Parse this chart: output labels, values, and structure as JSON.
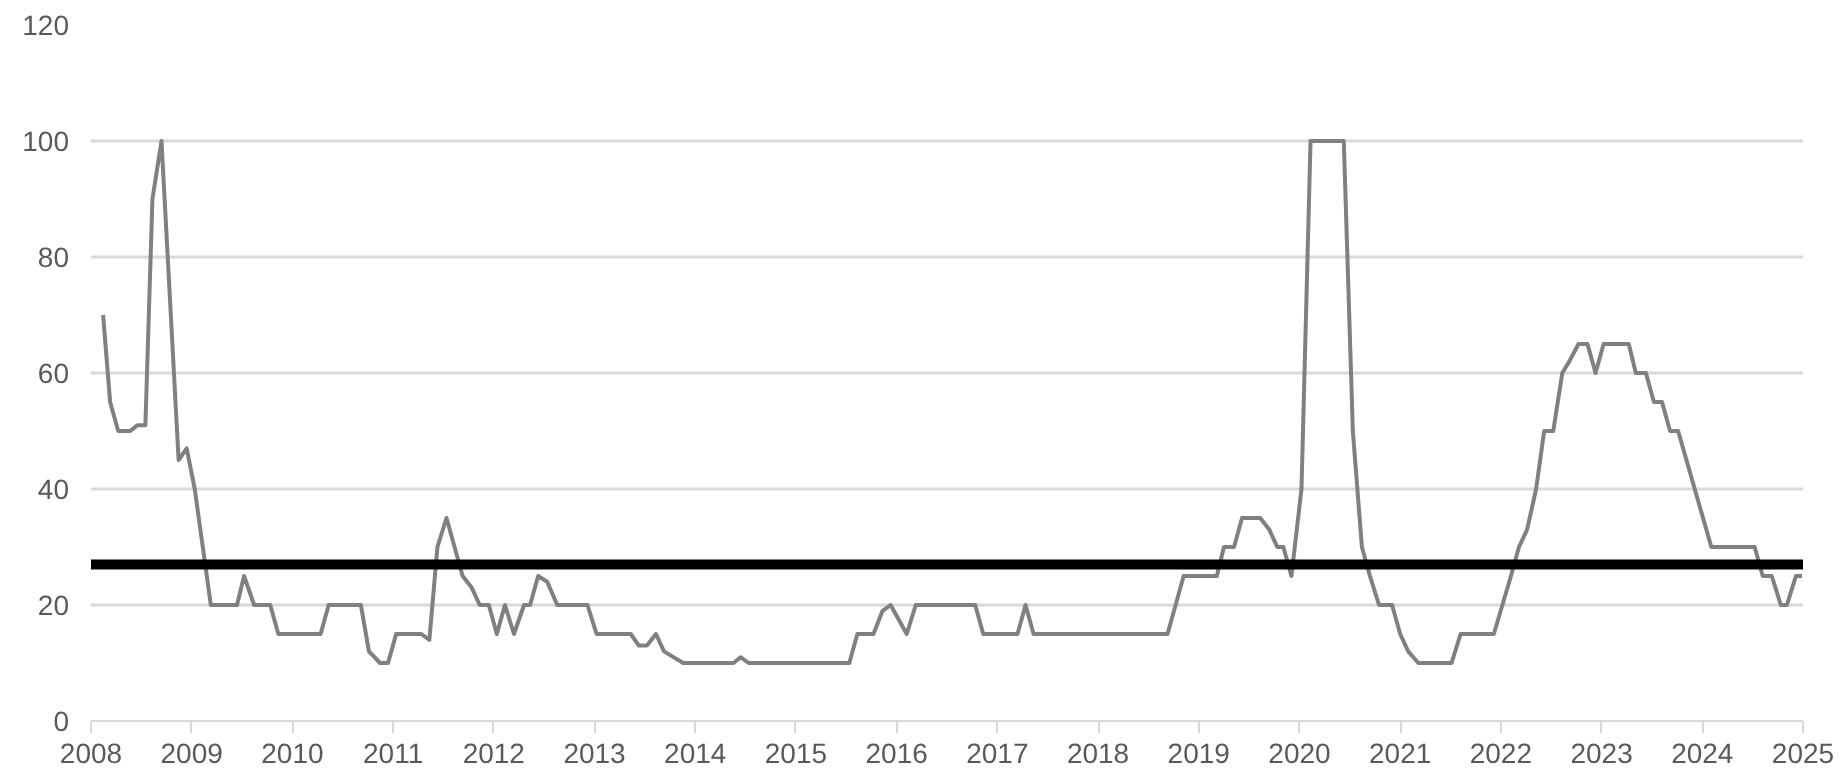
{
  "chart_data": {
    "type": "line",
    "x": [
      2008.12,
      2008.19,
      2008.27,
      2008.39,
      2008.46,
      2008.54,
      2008.61,
      2008.7,
      2008.87,
      2008.95,
      2009.03,
      2009.19,
      2009.45,
      2009.52,
      2009.62,
      2009.78,
      2009.86,
      2010.28,
      2010.36,
      2010.68,
      2010.76,
      2010.87,
      2010.95,
      2011.03,
      2011.28,
      2011.36,
      2011.44,
      2011.53,
      2011.69,
      2011.78,
      2011.86,
      2011.95,
      2012.03,
      2012.11,
      2012.2,
      2012.3,
      2012.36,
      2012.44,
      2012.53,
      2012.63,
      2012.93,
      2013.02,
      2013.36,
      2013.44,
      2013.52,
      2013.61,
      2013.69,
      2013.88,
      2014.38,
      2014.45,
      2014.53,
      2015.53,
      2015.61,
      2015.77,
      2015.86,
      2015.94,
      2016.1,
      2016.19,
      2016.78,
      2016.86,
      2017.2,
      2017.28,
      2017.36,
      2018.69,
      2018.85,
      2019.18,
      2019.25,
      2019.35,
      2019.43,
      2019.61,
      2019.7,
      2019.78,
      2019.84,
      2019.92,
      2020.02,
      2020.11,
      2020.44,
      2020.53,
      2020.62,
      2020.7,
      2020.79,
      2020.92,
      2021.0,
      2021.08,
      2021.18,
      2021.51,
      2021.6,
      2021.93,
      2022.1,
      2022.18,
      2022.26,
      2022.35,
      2022.43,
      2022.52,
      2022.61,
      2022.68,
      2022.77,
      2022.86,
      2022.94,
      2023.02,
      2023.27,
      2023.34,
      2023.44,
      2023.52,
      2023.6,
      2023.68,
      2023.76,
      2024.09,
      2024.52,
      2024.6,
      2024.69,
      2024.78,
      2024.84,
      2024.93,
      2024.99
    ],
    "series": [
      {
        "color": "#808080",
        "values": [
          70,
          55,
          50,
          50,
          51,
          51,
          90,
          100,
          45,
          47,
          40,
          20,
          20,
          25,
          20,
          20,
          15,
          15,
          20,
          20,
          12,
          10,
          10,
          15,
          15,
          14,
          30,
          35,
          25,
          23,
          20,
          20,
          15,
          20,
          15,
          20,
          20,
          25,
          24,
          20,
          20,
          15,
          15,
          13,
          13,
          15,
          12,
          10,
          10,
          11,
          10,
          10,
          15,
          15,
          19,
          20,
          15,
          20,
          20,
          15,
          15,
          20,
          15,
          15,
          25,
          25,
          30,
          30,
          35,
          35,
          33,
          30,
          30,
          25,
          40,
          100,
          100,
          50,
          30,
          25,
          20,
          20,
          15,
          12,
          10,
          10,
          15,
          15,
          25,
          30,
          33,
          40,
          50,
          50,
          60,
          62,
          65,
          65,
          60,
          65,
          65,
          60,
          60,
          55,
          55,
          50,
          50,
          30,
          30,
          25,
          25,
          20,
          20,
          25,
          25
        ]
      }
    ],
    "xlim": [
      2008,
      2025
    ],
    "xticks": [
      2008,
      2009,
      2010,
      2011,
      2012,
      2013,
      2014,
      2015,
      2016,
      2017,
      2018,
      2019,
      2020,
      2021,
      2022,
      2023,
      2024,
      2025
    ],
    "ylim": [
      0,
      120
    ],
    "yticks": [
      0,
      20,
      40,
      60,
      80,
      100,
      120
    ],
    "grid": "y",
    "line_style": "solid",
    "ref_lines": [
      {
        "axis": "y",
        "value": 27,
        "color": "#000000",
        "line_style": "solid"
      }
    ]
  }
}
